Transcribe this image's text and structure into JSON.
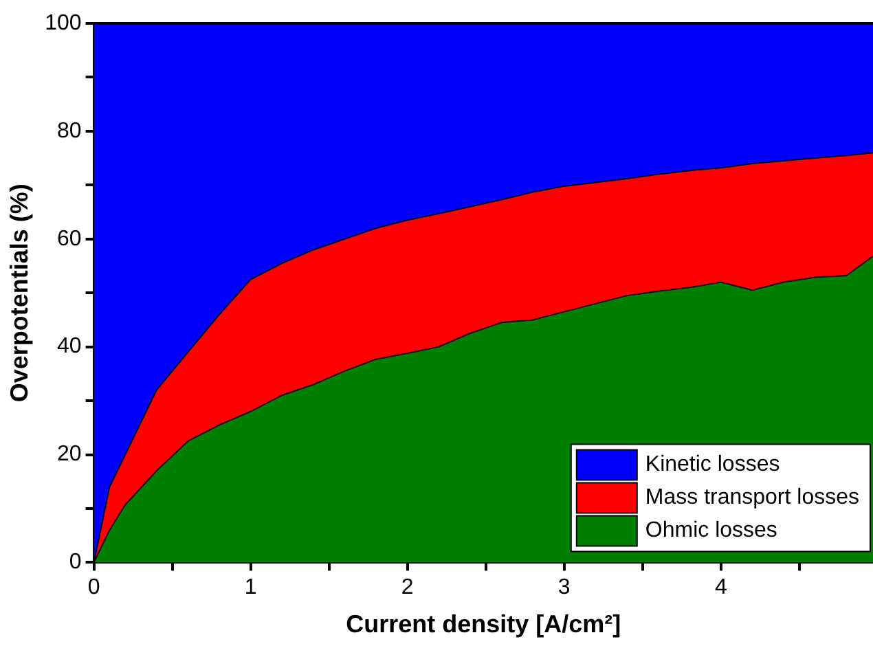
{
  "chart_data": {
    "type": "area",
    "stacked": true,
    "xlabel": "Current density [A/cm²]",
    "ylabel": "Overpotentials (%)",
    "x": [
      0,
      0.1,
      0.2,
      0.4,
      0.6,
      0.8,
      1.0,
      1.2,
      1.4,
      1.6,
      1.8,
      2.0,
      2.2,
      2.4,
      2.6,
      2.8,
      3.0,
      3.2,
      3.4,
      3.6,
      3.8,
      4.0,
      4.2,
      4.4,
      4.6,
      4.8,
      4.97
    ],
    "series": [
      {
        "name": "Ohmic losses",
        "color": "#008000",
        "values": [
          0,
          6,
          10.7,
          17,
          22.5,
          25.5,
          28,
          31,
          33,
          35.5,
          37.7,
          38.8,
          40,
          42.5,
          44.5,
          45,
          46.5,
          48,
          49.5,
          50.3,
          51,
          52,
          50.5,
          52,
          52.9,
          53.2,
          56.8
        ]
      },
      {
        "name": "Mass transport losses",
        "color": "#ff0000",
        "values": [
          0,
          8,
          9.3,
          15,
          16.5,
          20.5,
          24.5,
          24.5,
          25,
          24.5,
          24.3,
          24.7,
          24.7,
          23.5,
          22.8,
          23.7,
          23.3,
          22.5,
          21.7,
          21.7,
          21.7,
          21.2,
          23.5,
          22.5,
          22.1,
          22.3,
          19.2
        ]
      },
      {
        "name": "Kinetic losses",
        "color": "#0000ff",
        "values": [
          100,
          86,
          80,
          68,
          61,
          54,
          47.5,
          44.5,
          42,
          40,
          38,
          36.5,
          35.3,
          34,
          32.7,
          31.3,
          30.2,
          29.5,
          28.8,
          28,
          27.3,
          26.8,
          26,
          25.5,
          25,
          24.5,
          24
        ]
      }
    ],
    "xlim": [
      0,
      4.97
    ],
    "xticks": [
      0,
      {
        "value": 0.5,
        "label": null
      },
      1,
      {
        "value": 1.5,
        "label": null
      },
      2,
      {
        "value": 2.5,
        "label": null
      },
      3,
      {
        "value": 3.5,
        "label": null
      },
      4,
      {
        "value": 4.5,
        "label": null
      }
    ],
    "ylim": [
      0,
      100
    ],
    "yticks": [
      0,
      {
        "value": 10,
        "label": null
      },
      20,
      {
        "value": 30,
        "label": null
      },
      40,
      {
        "value": 50,
        "label": null
      },
      60,
      {
        "value": 70,
        "label": null
      },
      80,
      {
        "value": 90,
        "label": null
      },
      100
    ],
    "legend": "bottom right"
  }
}
